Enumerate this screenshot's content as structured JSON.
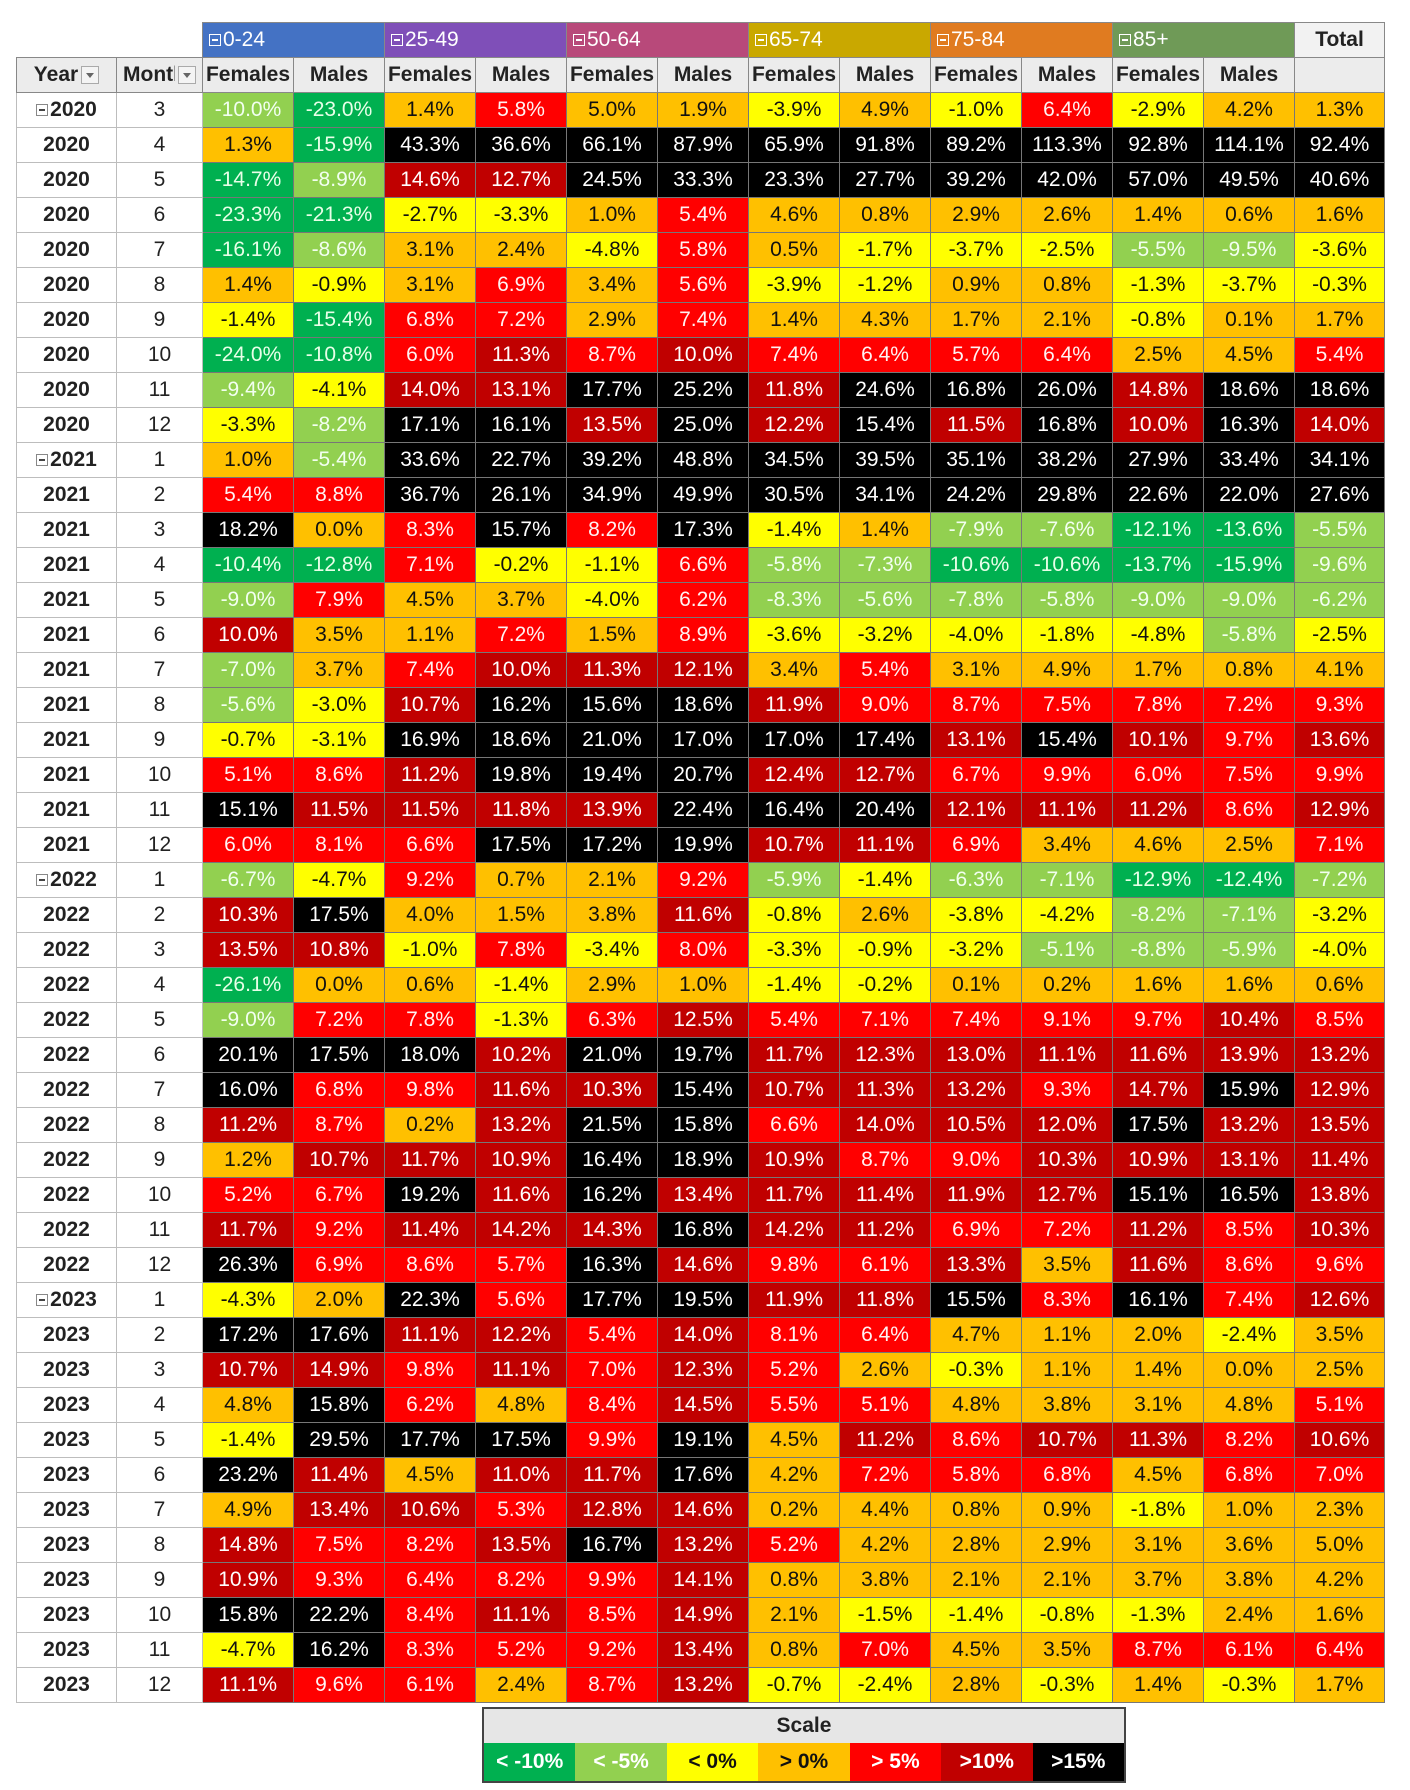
{
  "header": {
    "groups": [
      "0-24",
      "25-49",
      "50-64",
      "65-74",
      "75-84",
      "85+"
    ],
    "group_colors": [
      "#4472c4",
      "#7f4fb8",
      "#b8497a",
      "#c9a800",
      "#e07b20",
      "#6f9a57"
    ],
    "total_label": "Total",
    "year_label": "Year",
    "month_label": "Month",
    "females_label": "Females",
    "males_label": "Males"
  },
  "scale": {
    "title": "Scale",
    "items": [
      {
        "label": "< -10%",
        "color": "#00b050"
      },
      {
        "label": "< -5%",
        "color": "#92d050"
      },
      {
        "label": "< 0%",
        "color": "#ffff00"
      },
      {
        "label": "> 0%",
        "color": "#ffc000"
      },
      {
        "label": "> 5%",
        "color": "#ff0000"
      },
      {
        "label": ">10%",
        "color": "#c00000"
      },
      {
        "label": ">15%",
        "color": "#000000"
      }
    ]
  },
  "chart_data": {
    "type": "heatmap",
    "columns": [
      "0-24 Females",
      "0-24 Males",
      "25-49 Females",
      "25-49 Males",
      "50-64 Females",
      "50-64 Males",
      "65-74 Females",
      "65-74 Males",
      "75-84 Females",
      "75-84 Males",
      "85+ Females",
      "85+ Males",
      "Total"
    ],
    "rows": [
      {
        "year": "2020",
        "month": "3",
        "values": [
          "-10.0%",
          "-23.0%",
          "1.4%",
          "5.8%",
          "5.0%",
          "1.9%",
          "-3.9%",
          "4.9%",
          "-1.0%",
          "6.4%",
          "-2.9%",
          "4.2%",
          "1.3%"
        ]
      },
      {
        "year": "2020",
        "month": "4",
        "values": [
          "1.3%",
          "-15.9%",
          "43.3%",
          "36.6%",
          "66.1%",
          "87.9%",
          "65.9%",
          "91.8%",
          "89.2%",
          "113.3%",
          "92.8%",
          "114.1%",
          "92.4%"
        ]
      },
      {
        "year": "2020",
        "month": "5",
        "values": [
          "-14.7%",
          "-8.9%",
          "14.6%",
          "12.7%",
          "24.5%",
          "33.3%",
          "23.3%",
          "27.7%",
          "39.2%",
          "42.0%",
          "57.0%",
          "49.5%",
          "40.6%"
        ]
      },
      {
        "year": "2020",
        "month": "6",
        "values": [
          "-23.3%",
          "-21.3%",
          "-2.7%",
          "-3.3%",
          "1.0%",
          "5.4%",
          "4.6%",
          "0.8%",
          "2.9%",
          "2.6%",
          "1.4%",
          "0.6%",
          "1.6%"
        ]
      },
      {
        "year": "2020",
        "month": "7",
        "values": [
          "-16.1%",
          "-8.6%",
          "3.1%",
          "2.4%",
          "-4.8%",
          "5.8%",
          "0.5%",
          "-1.7%",
          "-3.7%",
          "-2.5%",
          "-5.5%",
          "-9.5%",
          "-3.6%"
        ]
      },
      {
        "year": "2020",
        "month": "8",
        "values": [
          "1.4%",
          "-0.9%",
          "3.1%",
          "6.9%",
          "3.4%",
          "5.6%",
          "-3.9%",
          "-1.2%",
          "0.9%",
          "0.8%",
          "-1.3%",
          "-3.7%",
          "-0.3%"
        ]
      },
      {
        "year": "2020",
        "month": "9",
        "values": [
          "-1.4%",
          "-15.4%",
          "6.8%",
          "7.2%",
          "2.9%",
          "7.4%",
          "1.4%",
          "4.3%",
          "1.7%",
          "2.1%",
          "-0.8%",
          "0.1%",
          "1.7%"
        ]
      },
      {
        "year": "2020",
        "month": "10",
        "values": [
          "-24.0%",
          "-10.8%",
          "6.0%",
          "11.3%",
          "8.7%",
          "10.0%",
          "7.4%",
          "6.4%",
          "5.7%",
          "6.4%",
          "2.5%",
          "4.5%",
          "5.4%"
        ]
      },
      {
        "year": "2020",
        "month": "11",
        "values": [
          "-9.4%",
          "-4.1%",
          "14.0%",
          "13.1%",
          "17.7%",
          "25.2%",
          "11.8%",
          "24.6%",
          "16.8%",
          "26.0%",
          "14.8%",
          "18.6%",
          "18.6%"
        ]
      },
      {
        "year": "2020",
        "month": "12",
        "values": [
          "-3.3%",
          "-8.2%",
          "17.1%",
          "16.1%",
          "13.5%",
          "25.0%",
          "12.2%",
          "15.4%",
          "11.5%",
          "16.8%",
          "10.0%",
          "16.3%",
          "14.0%"
        ]
      },
      {
        "year": "2021",
        "month": "1",
        "values": [
          "1.0%",
          "-5.4%",
          "33.6%",
          "22.7%",
          "39.2%",
          "48.8%",
          "34.5%",
          "39.5%",
          "35.1%",
          "38.2%",
          "27.9%",
          "33.4%",
          "34.1%"
        ]
      },
      {
        "year": "2021",
        "month": "2",
        "values": [
          "5.4%",
          "8.8%",
          "36.7%",
          "26.1%",
          "34.9%",
          "49.9%",
          "30.5%",
          "34.1%",
          "24.2%",
          "29.8%",
          "22.6%",
          "22.0%",
          "27.6%"
        ]
      },
      {
        "year": "2021",
        "month": "3",
        "values": [
          "18.2%",
          "0.0%",
          "8.3%",
          "15.7%",
          "8.2%",
          "17.3%",
          "-1.4%",
          "1.4%",
          "-7.9%",
          "-7.6%",
          "-12.1%",
          "-13.6%",
          "-5.5%"
        ]
      },
      {
        "year": "2021",
        "month": "4",
        "values": [
          "-10.4%",
          "-12.8%",
          "7.1%",
          "-0.2%",
          "-1.1%",
          "6.6%",
          "-5.8%",
          "-7.3%",
          "-10.6%",
          "-10.6%",
          "-13.7%",
          "-15.9%",
          "-9.6%"
        ]
      },
      {
        "year": "2021",
        "month": "5",
        "values": [
          "-9.0%",
          "7.9%",
          "4.5%",
          "3.7%",
          "-4.0%",
          "6.2%",
          "-8.3%",
          "-5.6%",
          "-7.8%",
          "-5.8%",
          "-9.0%",
          "-9.0%",
          "-6.2%"
        ]
      },
      {
        "year": "2021",
        "month": "6",
        "values": [
          "10.0%",
          "3.5%",
          "1.1%",
          "7.2%",
          "1.5%",
          "8.9%",
          "-3.6%",
          "-3.2%",
          "-4.0%",
          "-1.8%",
          "-4.8%",
          "-5.8%",
          "-2.5%"
        ]
      },
      {
        "year": "2021",
        "month": "7",
        "values": [
          "-7.0%",
          "3.7%",
          "7.4%",
          "10.0%",
          "11.3%",
          "12.1%",
          "3.4%",
          "5.4%",
          "3.1%",
          "4.9%",
          "1.7%",
          "0.8%",
          "4.1%"
        ]
      },
      {
        "year": "2021",
        "month": "8",
        "values": [
          "-5.6%",
          "-3.0%",
          "10.7%",
          "16.2%",
          "15.6%",
          "18.6%",
          "11.9%",
          "9.0%",
          "8.7%",
          "7.5%",
          "7.8%",
          "7.2%",
          "9.3%"
        ]
      },
      {
        "year": "2021",
        "month": "9",
        "values": [
          "-0.7%",
          "-3.1%",
          "16.9%",
          "18.6%",
          "21.0%",
          "17.0%",
          "17.0%",
          "17.4%",
          "13.1%",
          "15.4%",
          "10.1%",
          "9.7%",
          "13.6%"
        ]
      },
      {
        "year": "2021",
        "month": "10",
        "values": [
          "5.1%",
          "8.6%",
          "11.2%",
          "19.8%",
          "19.4%",
          "20.7%",
          "12.4%",
          "12.7%",
          "6.7%",
          "9.9%",
          "6.0%",
          "7.5%",
          "9.9%"
        ]
      },
      {
        "year": "2021",
        "month": "11",
        "values": [
          "15.1%",
          "11.5%",
          "11.5%",
          "11.8%",
          "13.9%",
          "22.4%",
          "16.4%",
          "20.4%",
          "12.1%",
          "11.1%",
          "11.2%",
          "8.6%",
          "12.9%"
        ]
      },
      {
        "year": "2021",
        "month": "12",
        "values": [
          "6.0%",
          "8.1%",
          "6.6%",
          "17.5%",
          "17.2%",
          "19.9%",
          "10.7%",
          "11.1%",
          "6.9%",
          "3.4%",
          "4.6%",
          "2.5%",
          "7.1%"
        ]
      },
      {
        "year": "2022",
        "month": "1",
        "values": [
          "-6.7%",
          "-4.7%",
          "9.2%",
          "0.7%",
          "2.1%",
          "9.2%",
          "-5.9%",
          "-1.4%",
          "-6.3%",
          "-7.1%",
          "-12.9%",
          "-12.4%",
          "-7.2%"
        ]
      },
      {
        "year": "2022",
        "month": "2",
        "values": [
          "10.3%",
          "17.5%",
          "4.0%",
          "1.5%",
          "3.8%",
          "11.6%",
          "-0.8%",
          "2.6%",
          "-3.8%",
          "-4.2%",
          "-8.2%",
          "-7.1%",
          "-3.2%"
        ]
      },
      {
        "year": "2022",
        "month": "3",
        "values": [
          "13.5%",
          "10.8%",
          "-1.0%",
          "7.8%",
          "-3.4%",
          "8.0%",
          "-3.3%",
          "-0.9%",
          "-3.2%",
          "-5.1%",
          "-8.8%",
          "-5.9%",
          "-4.0%"
        ]
      },
      {
        "year": "2022",
        "month": "4",
        "values": [
          "-26.1%",
          "0.0%",
          "0.6%",
          "-1.4%",
          "2.9%",
          "1.0%",
          "-1.4%",
          "-0.2%",
          "0.1%",
          "0.2%",
          "1.6%",
          "1.6%",
          "0.6%"
        ]
      },
      {
        "year": "2022",
        "month": "5",
        "values": [
          "-9.0%",
          "7.2%",
          "7.8%",
          "-1.3%",
          "6.3%",
          "12.5%",
          "5.4%",
          "7.1%",
          "7.4%",
          "9.1%",
          "9.7%",
          "10.4%",
          "8.5%"
        ]
      },
      {
        "year": "2022",
        "month": "6",
        "values": [
          "20.1%",
          "17.5%",
          "18.0%",
          "10.2%",
          "21.0%",
          "19.7%",
          "11.7%",
          "12.3%",
          "13.0%",
          "11.1%",
          "11.6%",
          "13.9%",
          "13.2%"
        ]
      },
      {
        "year": "2022",
        "month": "7",
        "values": [
          "16.0%",
          "6.8%",
          "9.8%",
          "11.6%",
          "10.3%",
          "15.4%",
          "10.7%",
          "11.3%",
          "13.2%",
          "9.3%",
          "14.7%",
          "15.9%",
          "12.9%"
        ]
      },
      {
        "year": "2022",
        "month": "8",
        "values": [
          "11.2%",
          "8.7%",
          "0.2%",
          "13.2%",
          "21.5%",
          "15.8%",
          "6.6%",
          "14.0%",
          "10.5%",
          "12.0%",
          "17.5%",
          "13.2%",
          "13.5%"
        ]
      },
      {
        "year": "2022",
        "month": "9",
        "values": [
          "1.2%",
          "10.7%",
          "11.7%",
          "10.9%",
          "16.4%",
          "18.9%",
          "10.9%",
          "8.7%",
          "9.0%",
          "10.3%",
          "10.9%",
          "13.1%",
          "11.4%"
        ]
      },
      {
        "year": "2022",
        "month": "10",
        "values": [
          "5.2%",
          "6.7%",
          "19.2%",
          "11.6%",
          "16.2%",
          "13.4%",
          "11.7%",
          "11.4%",
          "11.9%",
          "12.7%",
          "15.1%",
          "16.5%",
          "13.8%"
        ]
      },
      {
        "year": "2022",
        "month": "11",
        "values": [
          "11.7%",
          "9.2%",
          "11.4%",
          "14.2%",
          "14.3%",
          "16.8%",
          "14.2%",
          "11.2%",
          "6.9%",
          "7.2%",
          "11.2%",
          "8.5%",
          "10.3%"
        ]
      },
      {
        "year": "2022",
        "month": "12",
        "values": [
          "26.3%",
          "6.9%",
          "8.6%",
          "5.7%",
          "16.3%",
          "14.6%",
          "9.8%",
          "6.1%",
          "13.3%",
          "3.5%",
          "11.6%",
          "8.6%",
          "9.6%"
        ]
      },
      {
        "year": "2023",
        "month": "1",
        "values": [
          "-4.3%",
          "2.0%",
          "22.3%",
          "5.6%",
          "17.7%",
          "19.5%",
          "11.9%",
          "11.8%",
          "15.5%",
          "8.3%",
          "16.1%",
          "7.4%",
          "12.6%"
        ]
      },
      {
        "year": "2023",
        "month": "2",
        "values": [
          "17.2%",
          "17.6%",
          "11.1%",
          "12.2%",
          "5.4%",
          "14.0%",
          "8.1%",
          "6.4%",
          "4.7%",
          "1.1%",
          "2.0%",
          "-2.4%",
          "3.5%"
        ]
      },
      {
        "year": "2023",
        "month": "3",
        "values": [
          "10.7%",
          "14.9%",
          "9.8%",
          "11.1%",
          "7.0%",
          "12.3%",
          "5.2%",
          "2.6%",
          "-0.3%",
          "1.1%",
          "1.4%",
          "0.0%",
          "2.5%"
        ]
      },
      {
        "year": "2023",
        "month": "4",
        "values": [
          "4.8%",
          "15.8%",
          "6.2%",
          "4.8%",
          "8.4%",
          "14.5%",
          "5.5%",
          "5.1%",
          "4.8%",
          "3.8%",
          "3.1%",
          "4.8%",
          "5.1%"
        ]
      },
      {
        "year": "2023",
        "month": "5",
        "values": [
          "-1.4%",
          "29.5%",
          "17.7%",
          "17.5%",
          "9.9%",
          "19.1%",
          "4.5%",
          "11.2%",
          "8.6%",
          "10.7%",
          "11.3%",
          "8.2%",
          "10.6%"
        ]
      },
      {
        "year": "2023",
        "month": "6",
        "values": [
          "23.2%",
          "11.4%",
          "4.5%",
          "11.0%",
          "11.7%",
          "17.6%",
          "4.2%",
          "7.2%",
          "5.8%",
          "6.8%",
          "4.5%",
          "6.8%",
          "7.0%"
        ]
      },
      {
        "year": "2023",
        "month": "7",
        "values": [
          "4.9%",
          "13.4%",
          "10.6%",
          "5.3%",
          "12.8%",
          "14.6%",
          "0.2%",
          "4.4%",
          "0.8%",
          "0.9%",
          "-1.8%",
          "1.0%",
          "2.3%"
        ]
      },
      {
        "year": "2023",
        "month": "8",
        "values": [
          "14.8%",
          "7.5%",
          "8.2%",
          "13.5%",
          "16.7%",
          "13.2%",
          "5.2%",
          "4.2%",
          "2.8%",
          "2.9%",
          "3.1%",
          "3.6%",
          "5.0%"
        ]
      },
      {
        "year": "2023",
        "month": "9",
        "values": [
          "10.9%",
          "9.3%",
          "6.4%",
          "8.2%",
          "9.9%",
          "14.1%",
          "0.8%",
          "3.8%",
          "2.1%",
          "2.1%",
          "3.7%",
          "3.8%",
          "4.2%"
        ]
      },
      {
        "year": "2023",
        "month": "10",
        "values": [
          "15.8%",
          "22.2%",
          "8.4%",
          "11.1%",
          "8.5%",
          "14.9%",
          "2.1%",
          "-1.5%",
          "-1.4%",
          "-0.8%",
          "-1.3%",
          "2.4%",
          "1.6%"
        ]
      },
      {
        "year": "2023",
        "month": "11",
        "values": [
          "-4.7%",
          "16.2%",
          "8.3%",
          "5.2%",
          "9.2%",
          "13.4%",
          "0.8%",
          "7.0%",
          "4.5%",
          "3.5%",
          "8.7%",
          "6.1%",
          "6.4%"
        ]
      },
      {
        "year": "2023",
        "month": "12",
        "values": [
          "11.1%",
          "9.6%",
          "6.1%",
          "2.4%",
          "8.7%",
          "13.2%",
          "-0.7%",
          "-2.4%",
          "2.8%",
          "-0.3%",
          "1.4%",
          "-0.3%",
          "1.7%"
        ]
      }
    ]
  }
}
